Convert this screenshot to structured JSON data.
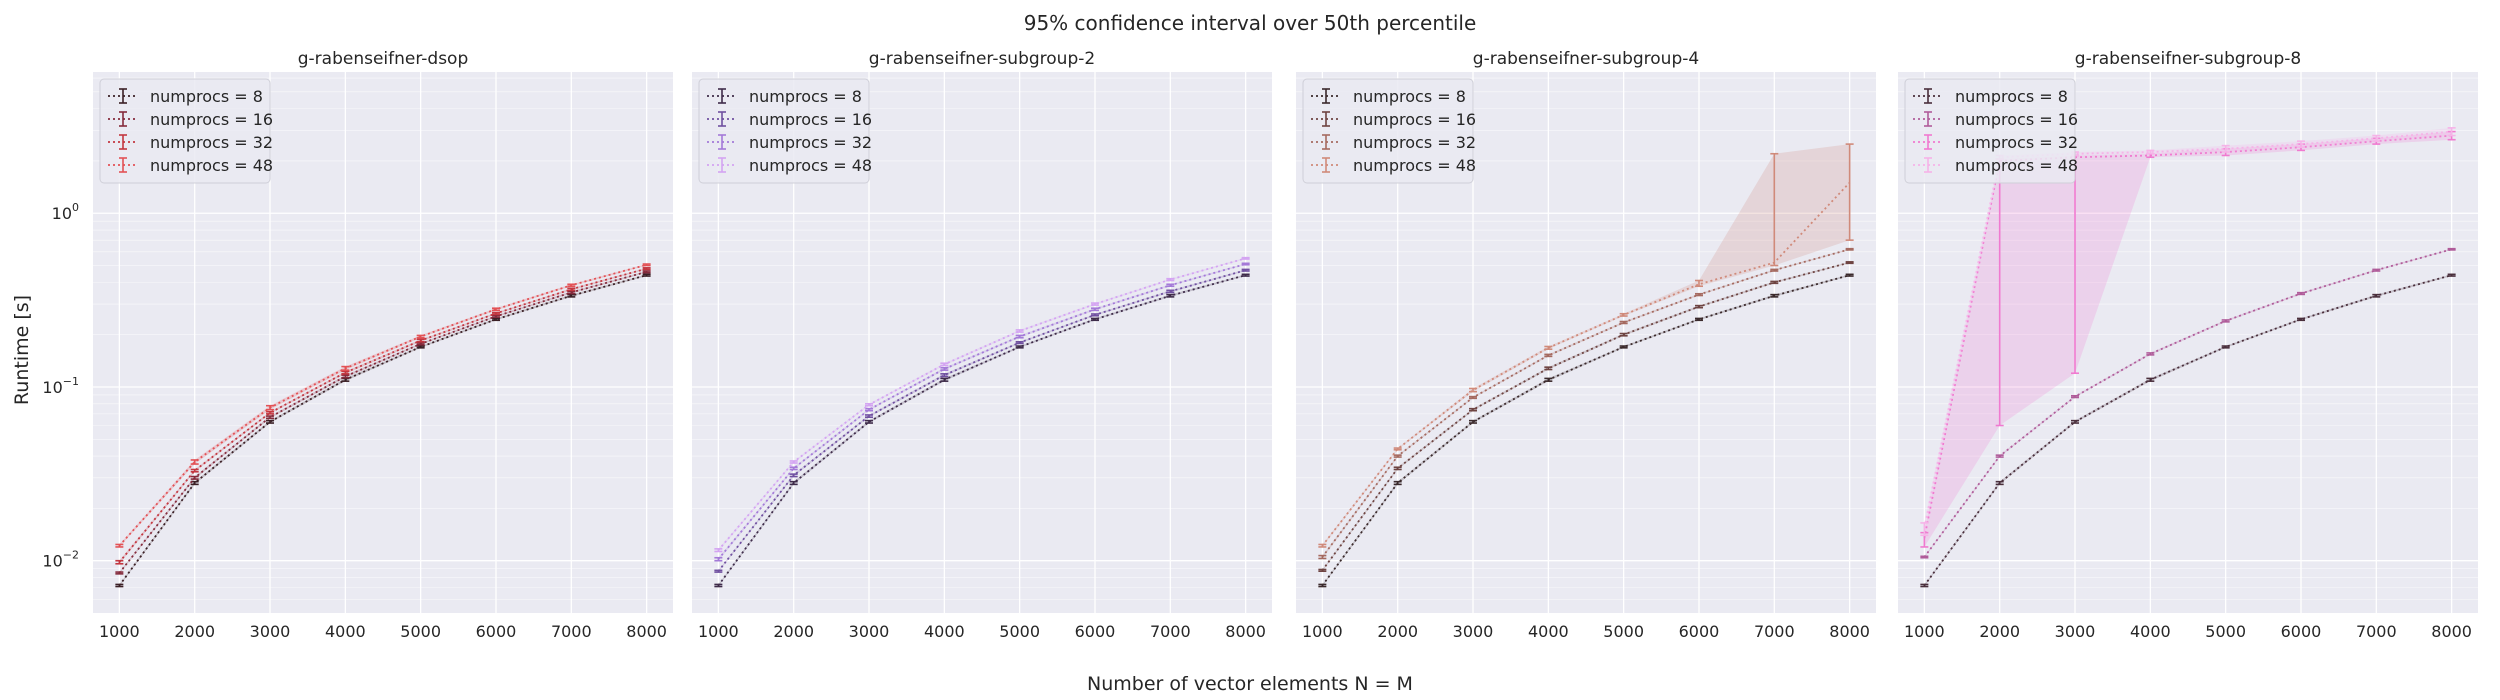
{
  "chart_data": {
    "type": "line",
    "title": "95% confidence interval over 50th percentile",
    "xlabel": "Number of vector elements N = M",
    "ylabel": "Runtime [s]",
    "yscale": "log",
    "ylim": [
      0.005,
      6.5
    ],
    "xlim": [
      650,
      8350
    ],
    "grid": true,
    "x": [
      1000,
      2000,
      3000,
      4000,
      5000,
      6000,
      7000,
      8000
    ],
    "x_ticks": [
      "1000",
      "2000",
      "3000",
      "4000",
      "5000",
      "6000",
      "7000",
      "8000"
    ],
    "y_ticks": [
      {
        "label": "10",
        "exp": "−2",
        "value": 0.01
      },
      {
        "label": "10",
        "exp": "−1",
        "value": 0.1
      },
      {
        "label": "10",
        "exp": "0",
        "value": 1
      }
    ],
    "legend_position": "top-left",
    "panels": [
      {
        "title": "g-rabenseifner-dsop",
        "series": [
          {
            "name": "numprocs = 8",
            "color": "#3b2026",
            "values": [
              0.0072,
              0.028,
              0.063,
              0.11,
              0.17,
              0.245,
              0.335,
              0.44
            ],
            "lower": [
              0.0071,
              0.0275,
              0.062,
              0.108,
              0.168,
              0.242,
              0.33,
              0.435
            ],
            "upper": [
              0.0073,
              0.0285,
              0.064,
              0.112,
              0.172,
              0.248,
              0.34,
              0.445
            ]
          },
          {
            "name": "numprocs = 16",
            "color": "#852b3c",
            "values": [
              0.0085,
              0.03,
              0.067,
              0.115,
              0.177,
              0.255,
              0.35,
              0.46
            ],
            "lower": [
              0.0084,
              0.0295,
              0.066,
              0.113,
              0.175,
              0.252,
              0.345,
              0.455
            ],
            "upper": [
              0.0086,
              0.0305,
              0.068,
              0.117,
              0.179,
              0.258,
              0.355,
              0.465
            ]
          },
          {
            "name": "numprocs = 32",
            "color": "#c33740",
            "values": [
              0.0098,
              0.033,
              0.071,
              0.121,
              0.185,
              0.265,
              0.365,
              0.48
            ],
            "lower": [
              0.0096,
              0.0325,
              0.07,
              0.119,
              0.182,
              0.262,
              0.36,
              0.475
            ],
            "upper": [
              0.01,
              0.0335,
              0.072,
              0.123,
              0.188,
              0.268,
              0.37,
              0.485
            ]
          },
          {
            "name": "numprocs = 48",
            "color": "#e35256",
            "values": [
              0.0122,
              0.037,
              0.076,
              0.128,
              0.195,
              0.28,
              0.385,
              0.505
            ],
            "lower": [
              0.012,
              0.036,
              0.074,
              0.125,
              0.192,
              0.276,
              0.38,
              0.5
            ],
            "upper": [
              0.0124,
              0.038,
              0.078,
              0.131,
              0.198,
              0.284,
              0.39,
              0.51
            ]
          }
        ]
      },
      {
        "title": "g-rabenseifner-subgroup-2",
        "series": [
          {
            "name": "numprocs = 8",
            "color": "#3f2c4a",
            "values": [
              0.0072,
              0.028,
              0.063,
              0.11,
              0.17,
              0.245,
              0.335,
              0.44
            ],
            "lower": [
              0.0071,
              0.0275,
              0.062,
              0.108,
              0.168,
              0.242,
              0.33,
              0.435
            ],
            "upper": [
              0.0073,
              0.0285,
              0.064,
              0.112,
              0.172,
              0.248,
              0.34,
              0.445
            ]
          },
          {
            "name": "numprocs = 16",
            "color": "#7050a0",
            "values": [
              0.0087,
              0.031,
              0.068,
              0.117,
              0.18,
              0.26,
              0.355,
              0.47
            ],
            "lower": [
              0.0086,
              0.0305,
              0.067,
              0.115,
              0.178,
              0.257,
              0.35,
              0.465
            ],
            "upper": [
              0.0088,
              0.0315,
              0.069,
              0.119,
              0.182,
              0.263,
              0.36,
              0.475
            ]
          },
          {
            "name": "numprocs = 32",
            "color": "#a47ad8",
            "values": [
              0.0102,
              0.034,
              0.074,
              0.127,
              0.195,
              0.28,
              0.385,
              0.51
            ],
            "lower": [
              0.01,
              0.0335,
              0.073,
              0.125,
              0.192,
              0.276,
              0.38,
              0.505
            ],
            "upper": [
              0.0104,
              0.0345,
              0.075,
              0.129,
              0.198,
              0.284,
              0.39,
              0.515
            ]
          },
          {
            "name": "numprocs = 48",
            "color": "#d4a4f2",
            "values": [
              0.0115,
              0.037,
              0.079,
              0.135,
              0.21,
              0.3,
              0.415,
              0.55
            ],
            "lower": [
              0.0113,
              0.0365,
              0.078,
              0.133,
              0.207,
              0.296,
              0.41,
              0.545
            ],
            "upper": [
              0.0117,
              0.0375,
              0.08,
              0.137,
              0.213,
              0.304,
              0.42,
              0.555
            ]
          }
        ]
      },
      {
        "title": "g-rabenseifner-subgroup-4",
        "series": [
          {
            "name": "numprocs = 8",
            "color": "#3b2a2c",
            "values": [
              0.0072,
              0.028,
              0.063,
              0.11,
              0.17,
              0.245,
              0.335,
              0.44
            ],
            "lower": [
              0.0071,
              0.0275,
              0.062,
              0.108,
              0.168,
              0.242,
              0.33,
              0.435
            ],
            "upper": [
              0.0073,
              0.0285,
              0.064,
              0.112,
              0.172,
              0.248,
              0.34,
              0.445
            ]
          },
          {
            "name": "numprocs = 16",
            "color": "#6e4442",
            "values": [
              0.0088,
              0.034,
              0.074,
              0.128,
              0.2,
              0.29,
              0.4,
              0.52
            ],
            "lower": [
              0.0087,
              0.0335,
              0.073,
              0.126,
              0.197,
              0.286,
              0.395,
              0.515
            ],
            "upper": [
              0.0089,
              0.0345,
              0.075,
              0.13,
              0.203,
              0.294,
              0.405,
              0.525
            ]
          },
          {
            "name": "numprocs = 32",
            "color": "#a56a60",
            "values": [
              0.0105,
              0.04,
              0.087,
              0.152,
              0.235,
              0.34,
              0.47,
              0.62
            ],
            "lower": [
              0.0103,
              0.0395,
              0.086,
              0.15,
              0.232,
              0.336,
              0.465,
              0.615
            ],
            "upper": [
              0.0107,
              0.0405,
              0.088,
              0.154,
              0.238,
              0.344,
              0.475,
              0.625
            ]
          },
          {
            "name": "numprocs = 48",
            "color": "#d08a7a",
            "values": [
              0.0122,
              0.044,
              0.096,
              0.168,
              0.26,
              0.39,
              0.52,
              1.5
            ],
            "lower": [
              0.012,
              0.0435,
              0.094,
              0.165,
              0.256,
              0.38,
              0.5,
              0.7
            ],
            "upper": [
              0.0124,
              0.0445,
              0.098,
              0.171,
              0.264,
              0.41,
              2.2,
              2.5
            ]
          }
        ]
      },
      {
        "title": "g-rabenseifner-subgroup-8",
        "series": [
          {
            "name": "numprocs = 8",
            "color": "#4a2f3c",
            "values": [
              0.0072,
              0.028,
              0.063,
              0.11,
              0.17,
              0.245,
              0.335,
              0.44
            ],
            "lower": [
              0.0071,
              0.0275,
              0.062,
              0.108,
              0.168,
              0.242,
              0.33,
              0.435
            ],
            "upper": [
              0.0073,
              0.0285,
              0.064,
              0.112,
              0.172,
              0.248,
              0.34,
              0.445
            ]
          },
          {
            "name": "numprocs = 16",
            "color": "#b05c9a",
            "values": [
              0.0105,
              0.04,
              0.088,
              0.155,
              0.24,
              0.345,
              0.47,
              0.62
            ],
            "lower": [
              0.0104,
              0.0395,
              0.087,
              0.153,
              0.237,
              0.341,
              0.465,
              0.615
            ],
            "upper": [
              0.0106,
              0.0405,
              0.089,
              0.157,
              0.243,
              0.349,
              0.475,
              0.625
            ]
          },
          {
            "name": "numprocs = 32",
            "color": "#f07ad0",
            "values": [
              0.0135,
              2.0,
              2.1,
              2.15,
              2.25,
              2.4,
              2.6,
              2.8
            ],
            "lower": [
              0.012,
              0.06,
              0.12,
              2.1,
              2.15,
              2.3,
              2.5,
              2.65
            ],
            "upper": [
              0.0145,
              2.05,
              2.15,
              2.2,
              2.35,
              2.5,
              2.7,
              2.95
            ]
          },
          {
            "name": "numprocs = 48",
            "color": "#f6b3e8",
            "values": [
              0.0155,
              2.1,
              2.2,
              2.25,
              2.35,
              2.5,
              2.7,
              2.95
            ],
            "lower": [
              0.014,
              2.05,
              2.15,
              2.2,
              2.25,
              2.4,
              2.6,
              2.8
            ],
            "upper": [
              0.0165,
              2.15,
              2.25,
              2.3,
              2.45,
              2.6,
              2.8,
              3.1
            ]
          }
        ]
      }
    ]
  }
}
